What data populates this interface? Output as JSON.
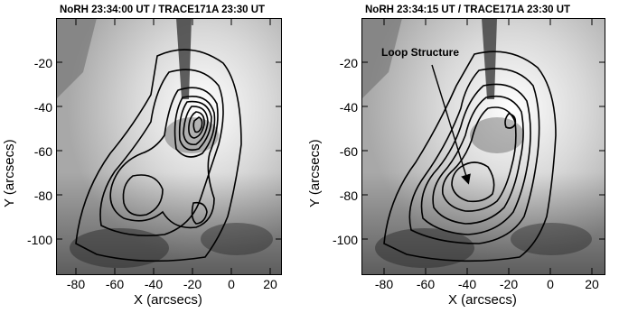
{
  "panels": [
    {
      "title": "NoRH 23:34:00 UT / TRACE171A   23:30 UT",
      "xlabel": "X (arcsecs)",
      "ylabel": "Y (arcsecs)",
      "annotation": ""
    },
    {
      "title": "NoRH 23:34:15 UT / TRACE171A   23:30 UT",
      "xlabel": "X (arcsecs)",
      "ylabel": "Y (arcsecs)",
      "annotation": "Loop Structure"
    }
  ],
  "x_ticks": [
    "-80",
    "-60",
    "-40",
    "-20",
    "0",
    "20"
  ],
  "y_ticks": [
    "-20",
    "-40",
    "-60",
    "-80",
    "-100"
  ],
  "x_range": [
    -90,
    27
  ],
  "y_range": [
    -120,
    -5
  ]
}
